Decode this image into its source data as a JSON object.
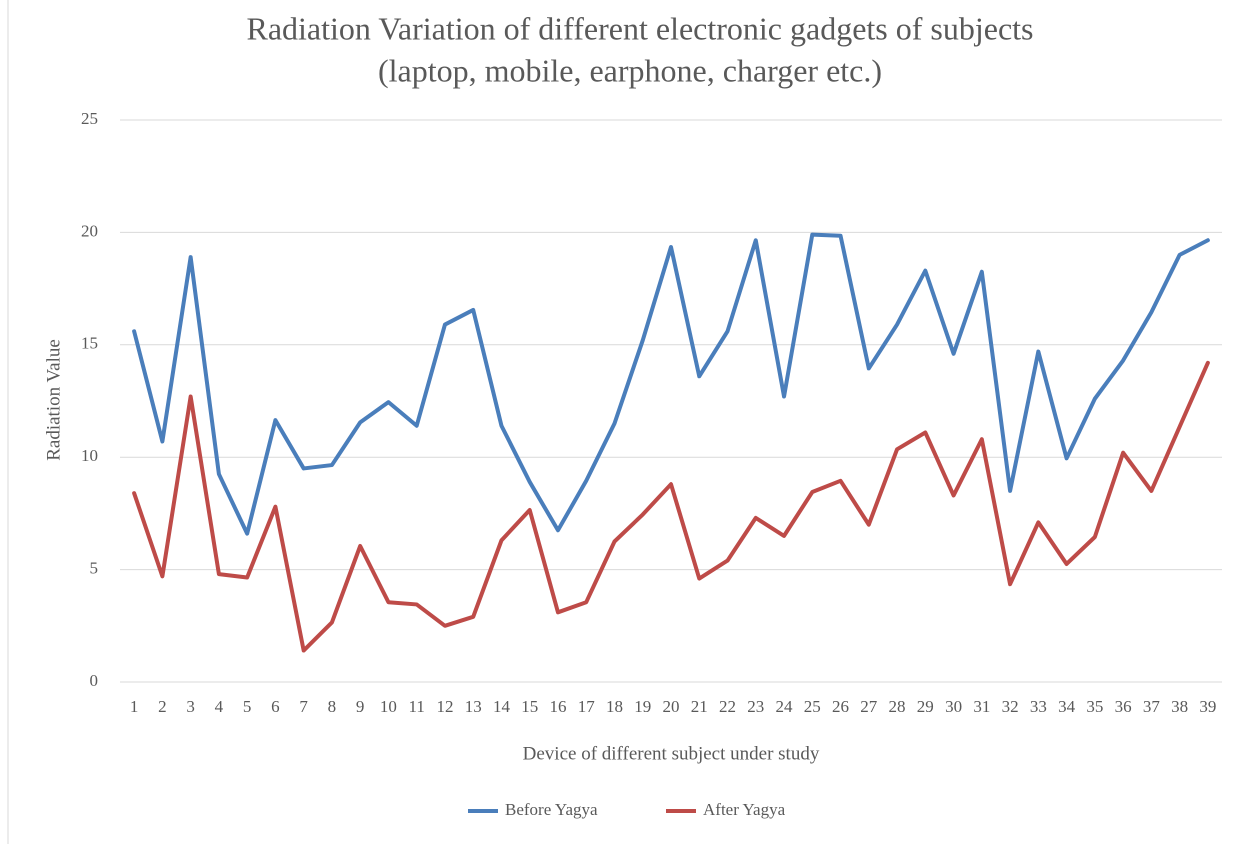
{
  "chart_data": {
    "type": "line",
    "title": [
      "Radiation Variation of different electronic gadgets of subjects",
      "(laptop, mobile, earphone, charger etc.)"
    ],
    "x_label": "Device of different subject under study",
    "y_label": "Radiation Value",
    "categories": [
      "1",
      "2",
      "3",
      "4",
      "5",
      "6",
      "7",
      "8",
      "9",
      "10",
      "11",
      "12",
      "13",
      "14",
      "15",
      "16",
      "17",
      "18",
      "19",
      "20",
      "21",
      "22",
      "23",
      "24",
      "25",
      "26",
      "27",
      "28",
      "29",
      "30",
      "31",
      "32",
      "33",
      "34",
      "35",
      "36",
      "37",
      "38",
      "39"
    ],
    "series": [
      {
        "name": "Before Yagya",
        "color": "#4a7ebb",
        "values": [
          15.6,
          10.7,
          18.9,
          9.25,
          6.6,
          11.65,
          9.5,
          9.65,
          11.55,
          12.45,
          11.4,
          15.9,
          16.55,
          11.4,
          8.9,
          6.75,
          8.95,
          11.5,
          15.2,
          19.35,
          13.6,
          15.6,
          19.65,
          12.7,
          19.9,
          19.85,
          13.95,
          15.9,
          18.3,
          14.6,
          18.25,
          8.5,
          14.7,
          9.95,
          12.6,
          14.3,
          16.45,
          19.0,
          19.65
        ]
      },
      {
        "name": "After Yagya",
        "color": "#be4b48",
        "values": [
          8.4,
          4.7,
          12.7,
          4.8,
          4.65,
          7.8,
          1.4,
          2.65,
          6.05,
          3.55,
          3.45,
          2.5,
          2.9,
          6.3,
          7.65,
          3.1,
          3.55,
          6.25,
          7.45,
          8.8,
          4.6,
          5.4,
          7.3,
          6.5,
          8.45,
          8.95,
          7.0,
          10.35,
          11.1,
          8.3,
          10.8,
          4.35,
          7.1,
          5.25,
          6.45,
          10.2,
          8.5,
          11.35,
          14.2
        ]
      }
    ],
    "ylim": [
      0,
      25
    ],
    "yticks": [
      0,
      5,
      10,
      15,
      20,
      25
    ],
    "grid": true,
    "legend": "bottom"
  }
}
